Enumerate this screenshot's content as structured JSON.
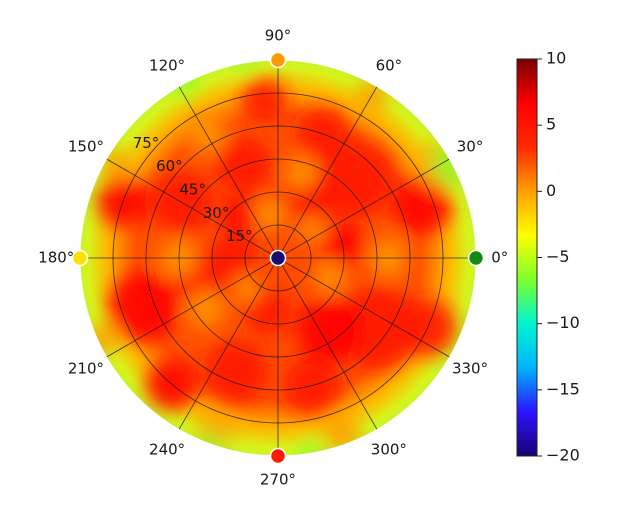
{
  "chart_data": {
    "type": "heatmap",
    "projection": "polar",
    "angle_ticks": [
      "0°",
      "30°",
      "60°",
      "90°",
      "120°",
      "150°",
      "180°",
      "210°",
      "240°",
      "270°",
      "300°",
      "330°"
    ],
    "angle_tick_values_deg": [
      0,
      30,
      60,
      90,
      120,
      150,
      180,
      210,
      240,
      270,
      300,
      330
    ],
    "radial_ticks": [
      "15°",
      "30°",
      "45°",
      "60°",
      "75°"
    ],
    "radial_tick_values": [
      15,
      30,
      45,
      60,
      75
    ],
    "radial_range": [
      0,
      90
    ],
    "grid": true,
    "colorbar": {
      "range": [
        -20,
        10
      ],
      "ticks": [
        "10",
        "5",
        "0",
        "−5",
        "−10",
        "−15",
        "−20"
      ],
      "tick_values": [
        10,
        5,
        0,
        -5,
        -10,
        -15,
        -20
      ],
      "colormap": "jet-like",
      "stops": [
        "#1a0072",
        "#2a14ff",
        "#00b3ff",
        "#00f5d0",
        "#7dff2a",
        "#ffff00",
        "#ff9f00",
        "#ff2a00",
        "#ff0000",
        "#7a0000"
      ]
    },
    "background_value_approx": 4,
    "rim_value_approx": 1,
    "markers": [
      {
        "angle_deg": 0,
        "radius": 90,
        "color": "#138a13"
      },
      {
        "angle_deg": 90,
        "radius": 90,
        "color": "#ff9a00"
      },
      {
        "angle_deg": 180,
        "radius": 90,
        "color": "#ffe300"
      },
      {
        "angle_deg": 270,
        "radius": 90,
        "color": "#ff1a00"
      },
      {
        "angle_deg": 0,
        "radius": 0,
        "color": "#1a0a6e"
      }
    ]
  }
}
